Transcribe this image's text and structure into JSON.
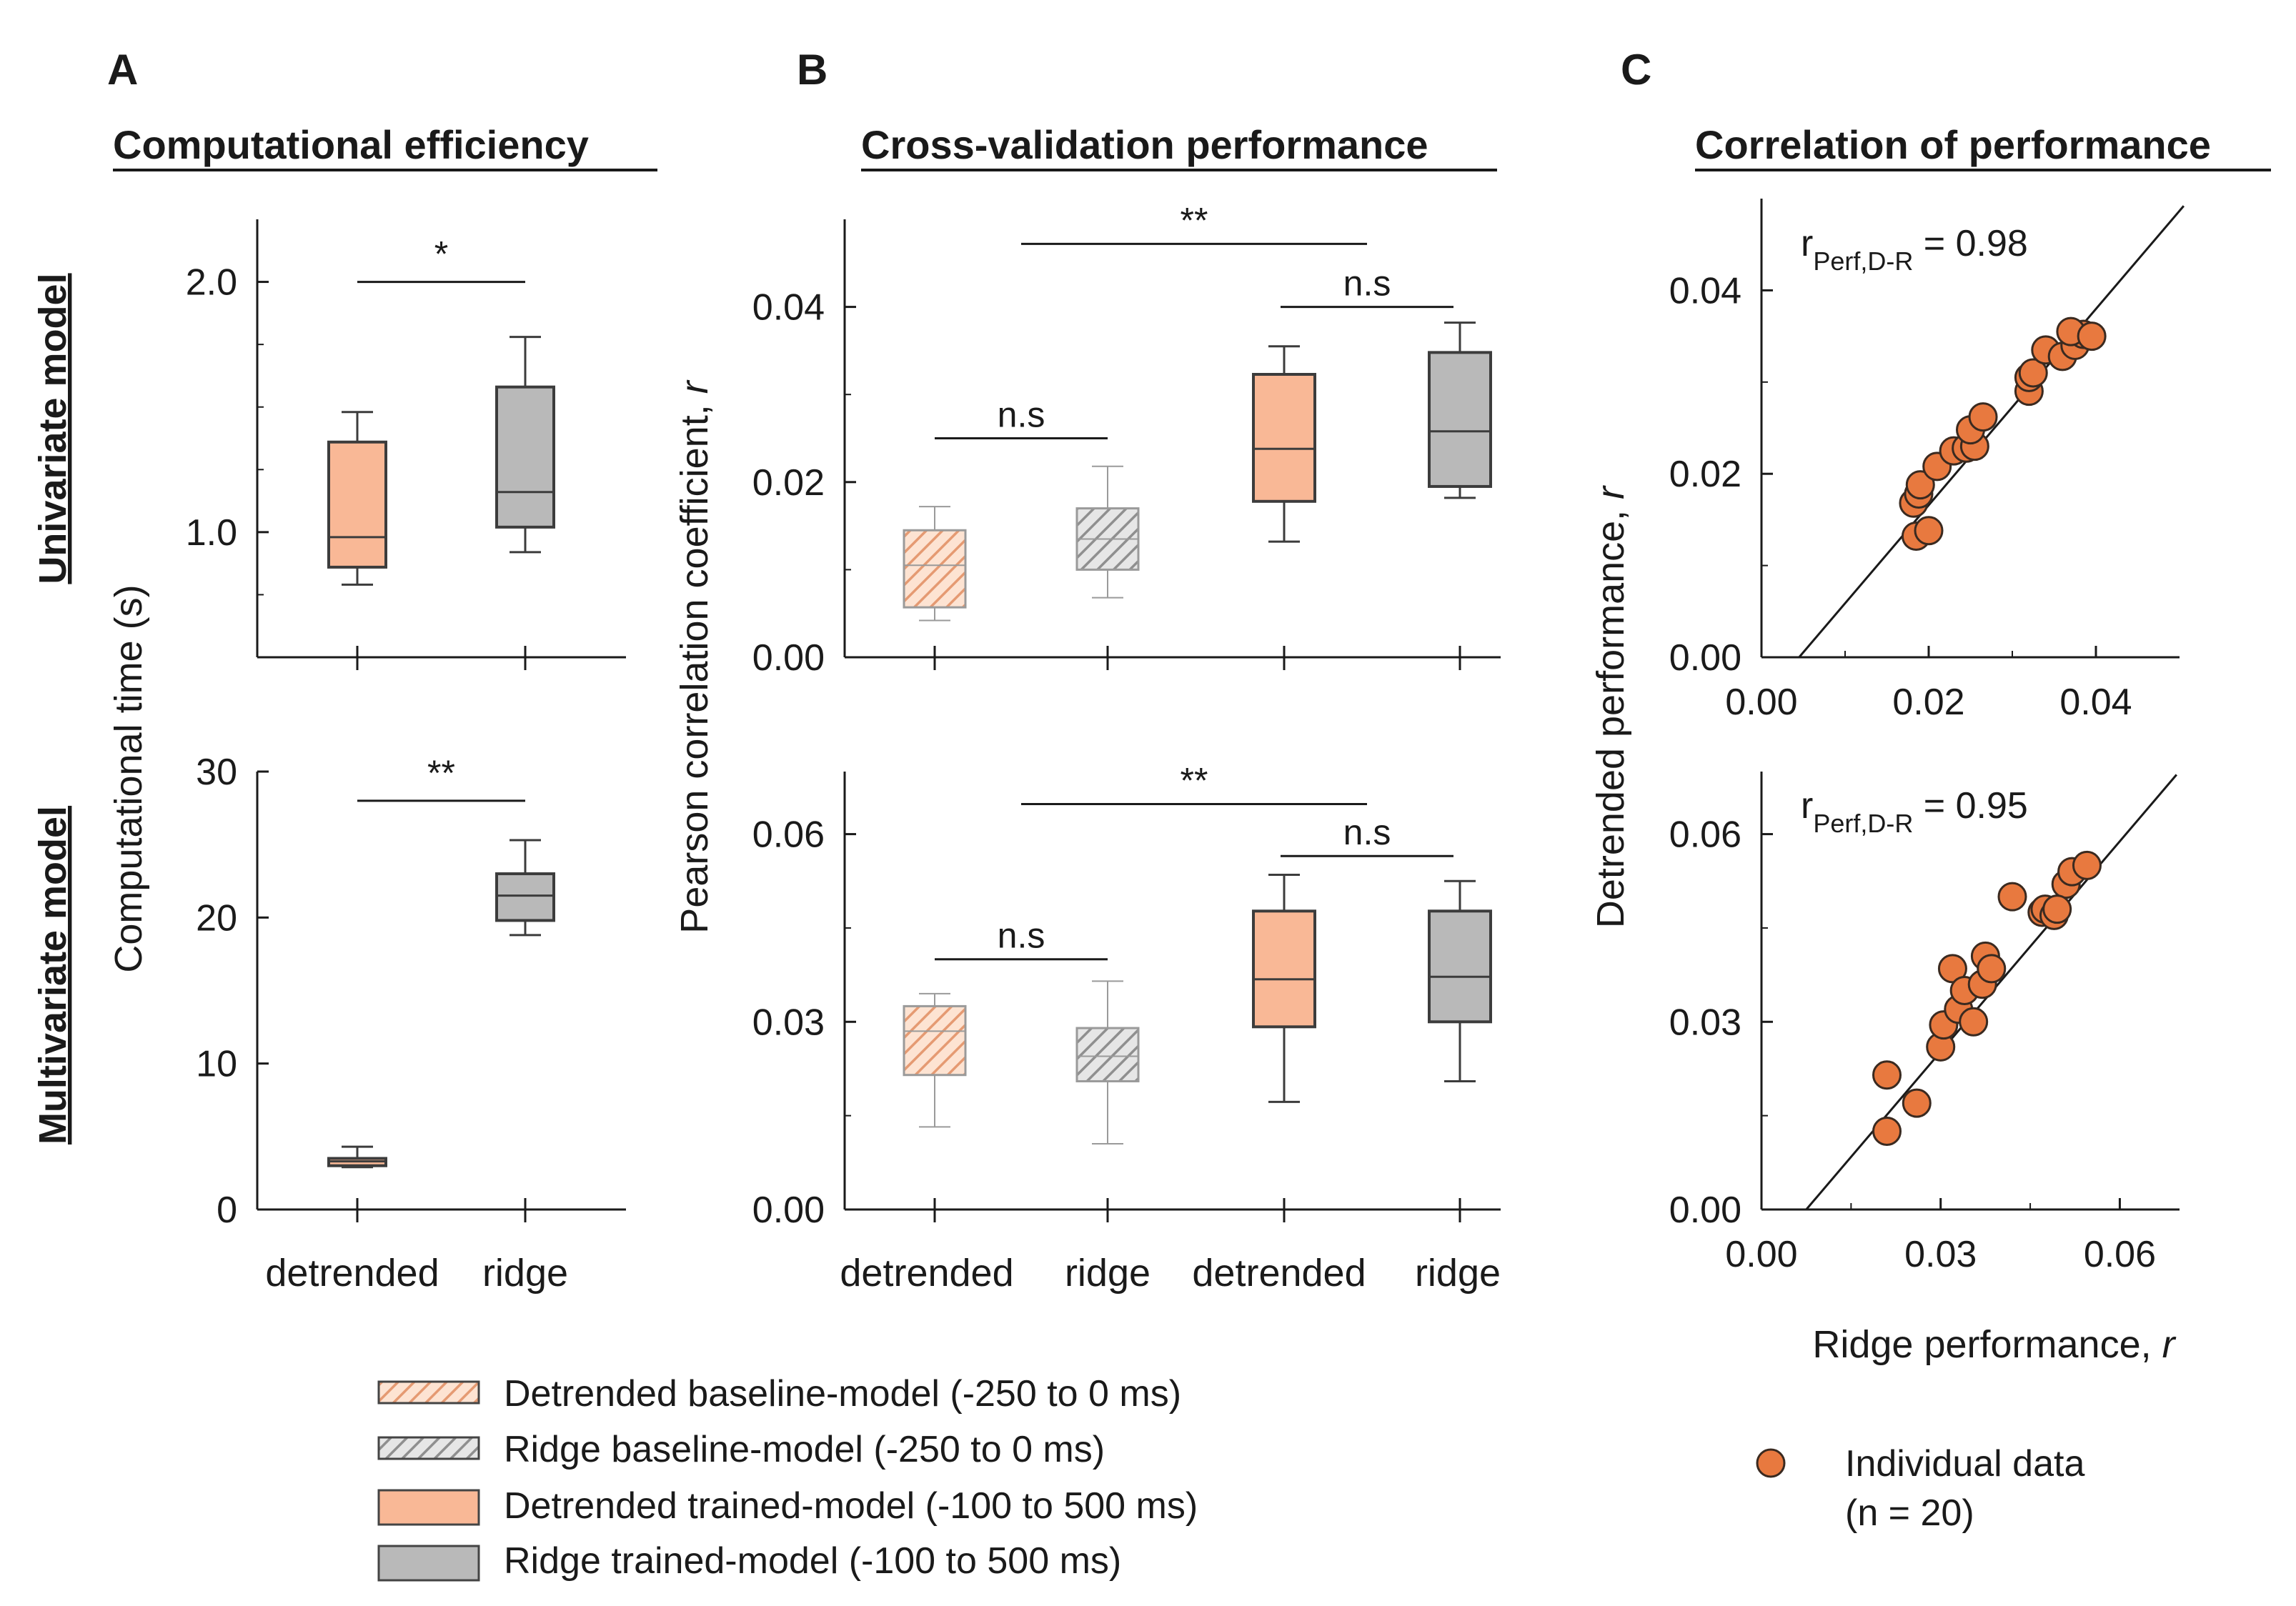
{
  "figure": {
    "panels": {
      "A": "A",
      "B": "B",
      "C": "C"
    },
    "titles": {
      "A": "Computational efficiency",
      "B": "Cross-validation performance",
      "C": "Correlation of performance"
    },
    "row_labels": {
      "top": "Univariate model",
      "bottom": "Multivariate model"
    },
    "axis_labels": {
      "A_y": "Computational time (s)",
      "B_y_main": "Pearson correlation coefficient, ",
      "B_y_var": "r",
      "C_y_main": "Detrended performance, ",
      "C_y_var": "r",
      "C_x_main": "Ridge performance, ",
      "C_x_var": "r"
    },
    "x_categories": {
      "A": [
        "detrended",
        "ridge"
      ],
      "B": [
        "detrended",
        "ridge",
        "detrended",
        "ridge"
      ]
    },
    "legend": {
      "items": [
        "Detrended baseline-model (-250 to 0 ms)",
        "Ridge baseline-model (-250 to 0 ms)",
        "Detrended trained-model (-100 to 500 ms)",
        "Ridge trained-model (-100 to 500 ms)"
      ],
      "scatter_line1": "Individual data",
      "scatter_line2": "(n = 20)"
    },
    "colors": {
      "detrended": "#f9b896",
      "ridge": "#b9b9b9",
      "points": "#e8793f",
      "axis": "#1a1a1a"
    }
  },
  "chart_data": [
    {
      "id": "A-top",
      "type": "box",
      "title": "Computational efficiency",
      "ylabel": "Computational time (s)",
      "categories": [
        "detrended",
        "ridge"
      ],
      "ylim": [
        0.5,
        2.25
      ],
      "yticks": [
        1.0,
        2.0
      ],
      "ytick_labels": [
        "1.0",
        "2.0"
      ],
      "yminor": [
        0.75,
        1.25,
        1.5,
        1.75
      ],
      "boxes": [
        {
          "name": "Detrended trained-model",
          "style": "detrended",
          "q1": 0.86,
          "median": 0.98,
          "q3": 1.36,
          "whisker_low": 0.79,
          "whisker_high": 1.48
        },
        {
          "name": "Ridge trained-model",
          "style": "ridge",
          "q1": 1.02,
          "median": 1.16,
          "q3": 1.58,
          "whisker_low": 0.92,
          "whisker_high": 1.78
        }
      ],
      "comparisons": [
        {
          "from": 0,
          "to": 1,
          "y": 2.0,
          "label": "*"
        }
      ]
    },
    {
      "id": "A-bottom",
      "type": "box",
      "ylabel": "Computational time (s)",
      "categories": [
        "detrended",
        "ridge"
      ],
      "ylim": [
        0,
        30
      ],
      "yticks": [
        0,
        10,
        20,
        30
      ],
      "ytick_labels": [
        "0",
        "10",
        "20",
        "30"
      ],
      "boxes": [
        {
          "name": "Detrended trained-model",
          "style": "detrended",
          "q1": 3.0,
          "median": 3.3,
          "q3": 3.5,
          "whisker_low": 2.9,
          "whisker_high": 4.3
        },
        {
          "name": "Ridge trained-model",
          "style": "ridge",
          "q1": 19.8,
          "median": 21.5,
          "q3": 23.0,
          "whisker_low": 18.8,
          "whisker_high": 25.3
        }
      ],
      "comparisons": [
        {
          "from": 0,
          "to": 1,
          "y": 28.0,
          "label": "**"
        }
      ]
    },
    {
      "id": "B-top",
      "type": "box",
      "title": "Cross-validation performance",
      "ylabel": "Pearson correlation coefficient, r",
      "categories": [
        "detrended",
        "ridge",
        "detrended",
        "ridge"
      ],
      "ylim": [
        0,
        0.05
      ],
      "yticks": [
        0.0,
        0.02,
        0.04
      ],
      "ytick_labels": [
        "0.00",
        "0.02",
        "0.04"
      ],
      "yminor": [
        0.01,
        0.03
      ],
      "boxes": [
        {
          "name": "Detrended baseline-model",
          "style": "detrended-hatch",
          "q1": 0.0057,
          "median": 0.0105,
          "q3": 0.0145,
          "whisker_low": 0.0042,
          "whisker_high": 0.0172
        },
        {
          "name": "Ridge baseline-model",
          "style": "ridge-hatch",
          "q1": 0.01,
          "median": 0.0135,
          "q3": 0.017,
          "whisker_low": 0.0068,
          "whisker_high": 0.0218
        },
        {
          "name": "Detrended trained-model",
          "style": "detrended",
          "q1": 0.0178,
          "median": 0.0238,
          "q3": 0.0323,
          "whisker_low": 0.0132,
          "whisker_high": 0.0355
        },
        {
          "name": "Ridge trained-model",
          "style": "ridge",
          "q1": 0.0195,
          "median": 0.0258,
          "q3": 0.0348,
          "whisker_low": 0.0182,
          "whisker_high": 0.0382
        }
      ],
      "comparisons": [
        {
          "from": 0,
          "to": 1,
          "y": 0.025,
          "label": "n.s"
        },
        {
          "from": 0.5,
          "to": 2.5,
          "y": 0.0472,
          "label": "**"
        },
        {
          "from": 2,
          "to": 3,
          "y": 0.04,
          "label": "n.s"
        }
      ]
    },
    {
      "id": "B-bottom",
      "type": "box",
      "ylabel": "Pearson correlation coefficient, r",
      "categories": [
        "detrended",
        "ridge",
        "detrended",
        "ridge"
      ],
      "ylim": [
        0,
        0.07
      ],
      "yticks": [
        0.0,
        0.03,
        0.06
      ],
      "ytick_labels": [
        "0.00",
        "0.03",
        "0.06"
      ],
      "yminor": [
        0.015,
        0.045
      ],
      "boxes": [
        {
          "name": "Detrended baseline-model",
          "style": "detrended-hatch",
          "q1": 0.0215,
          "median": 0.0285,
          "q3": 0.0325,
          "whisker_low": 0.0132,
          "whisker_high": 0.0345
        },
        {
          "name": "Ridge baseline-model",
          "style": "ridge-hatch",
          "q1": 0.0205,
          "median": 0.0245,
          "q3": 0.029,
          "whisker_low": 0.0105,
          "whisker_high": 0.0365
        },
        {
          "name": "Detrended trained-model",
          "style": "detrended",
          "q1": 0.0292,
          "median": 0.0368,
          "q3": 0.0477,
          "whisker_low": 0.0172,
          "whisker_high": 0.0535
        },
        {
          "name": "Ridge trained-model",
          "style": "ridge",
          "q1": 0.03,
          "median": 0.0372,
          "q3": 0.0477,
          "whisker_low": 0.0205,
          "whisker_high": 0.0525
        }
      ],
      "comparisons": [
        {
          "from": 0,
          "to": 1,
          "y": 0.04,
          "label": "n.s"
        },
        {
          "from": 0.5,
          "to": 2.5,
          "y": 0.0648,
          "label": "**"
        },
        {
          "from": 2,
          "to": 3,
          "y": 0.0565,
          "label": "n.s"
        }
      ]
    },
    {
      "id": "C-top",
      "type": "scatter",
      "title": "Correlation of performance",
      "xlabel": "Ridge performance, r",
      "ylabel": "Detrended performance, r",
      "xlim": [
        0,
        0.05
      ],
      "ylim": [
        0,
        0.05
      ],
      "xticks": [
        0.0,
        0.02,
        0.04
      ],
      "xtick_labels": [
        "0.00",
        "0.02",
        "0.04"
      ],
      "yticks": [
        0.0,
        0.02,
        0.04
      ],
      "ytick_labels": [
        "0.00",
        "0.02",
        "0.04"
      ],
      "minor": [
        0.01,
        0.03
      ],
      "stat_main": "r",
      "stat_sub": "Perf,D-R",
      "stat_value": " = 0.98",
      "r": 0.98,
      "fit_line": [
        [
          0.0045,
          0.0
        ],
        [
          0.0505,
          0.0492
        ]
      ],
      "points": [
        [
          0.0185,
          0.0132
        ],
        [
          0.02,
          0.0138
        ],
        [
          0.0182,
          0.0168
        ],
        [
          0.0188,
          0.0178
        ],
        [
          0.019,
          0.0188
        ],
        [
          0.021,
          0.0208
        ],
        [
          0.023,
          0.0225
        ],
        [
          0.0245,
          0.0228
        ],
        [
          0.0255,
          0.023
        ],
        [
          0.025,
          0.0248
        ],
        [
          0.0265,
          0.0262
        ],
        [
          0.032,
          0.029
        ],
        [
          0.032,
          0.0305
        ],
        [
          0.0325,
          0.031
        ],
        [
          0.034,
          0.0335
        ],
        [
          0.036,
          0.0328
        ],
        [
          0.0375,
          0.034
        ],
        [
          0.0385,
          0.0352
        ],
        [
          0.037,
          0.0355
        ],
        [
          0.0395,
          0.035
        ]
      ]
    },
    {
      "id": "C-bottom",
      "type": "scatter",
      "xlabel": "Ridge performance, r",
      "ylabel": "Detrended performance, r",
      "xlim": [
        0,
        0.07
      ],
      "ylim": [
        0,
        0.07
      ],
      "xticks": [
        0.0,
        0.03,
        0.06
      ],
      "xtick_labels": [
        "0.00",
        "0.03",
        "0.06"
      ],
      "yticks": [
        0.0,
        0.03,
        0.06
      ],
      "ytick_labels": [
        "0.00",
        "0.03",
        "0.06"
      ],
      "minor": [
        0.015,
        0.045
      ],
      "stat_main": "r",
      "stat_sub": "Perf,D-R",
      "stat_value": " = 0.95",
      "r": 0.95,
      "fit_line": [
        [
          0.0075,
          0.0
        ],
        [
          0.0695,
          0.0695
        ]
      ],
      "points": [
        [
          0.021,
          0.0125
        ],
        [
          0.021,
          0.0215
        ],
        [
          0.026,
          0.017
        ],
        [
          0.03,
          0.026
        ],
        [
          0.0305,
          0.0295
        ],
        [
          0.032,
          0.0385
        ],
        [
          0.033,
          0.032
        ],
        [
          0.034,
          0.035
        ],
        [
          0.0355,
          0.03
        ],
        [
          0.037,
          0.036
        ],
        [
          0.0375,
          0.0405
        ],
        [
          0.0385,
          0.0385
        ],
        [
          0.042,
          0.05
        ],
        [
          0.047,
          0.0475
        ],
        [
          0.0475,
          0.048
        ],
        [
          0.049,
          0.047
        ],
        [
          0.051,
          0.052
        ],
        [
          0.052,
          0.054
        ],
        [
          0.0545,
          0.055
        ],
        [
          0.0495,
          0.048
        ]
      ]
    }
  ]
}
